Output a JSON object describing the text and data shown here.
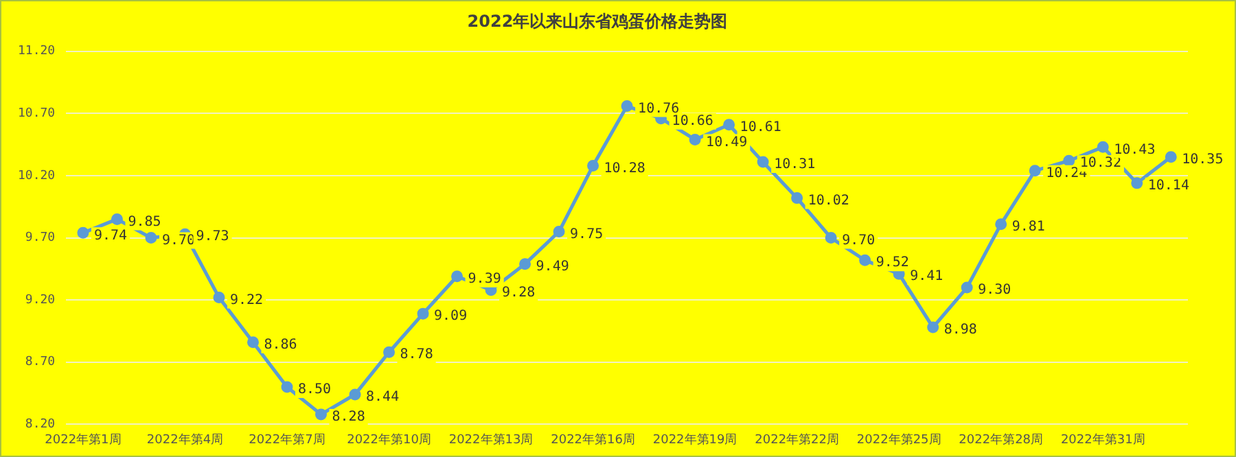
{
  "chart_data": {
    "type": "line",
    "title": "2022年以来山东省鸡蛋价格走势图",
    "categories": [
      "2022年第1周",
      null,
      null,
      "2022年第4周",
      null,
      null,
      "2022年第7周",
      null,
      null,
      "2022年第10周",
      null,
      null,
      "2022年第13周",
      null,
      null,
      "2022年第16周",
      null,
      null,
      "2022年第19周",
      null,
      null,
      "2022年第22周",
      null,
      null,
      "2022年第25周",
      null,
      null,
      "2022年第28周",
      null,
      null,
      "2022年第31周",
      null,
      null
    ],
    "series": [
      {
        "color": "#5b9bd5",
        "values": [
          9.74,
          9.85,
          9.7,
          9.73,
          9.22,
          8.86,
          8.5,
          8.28,
          8.44,
          8.78,
          9.09,
          9.39,
          9.28,
          9.49,
          9.75,
          10.28,
          10.76,
          10.66,
          10.49,
          10.61,
          10.31,
          10.02,
          9.7,
          9.52,
          9.41,
          8.98,
          9.3,
          9.81,
          10.24,
          10.32,
          10.43,
          10.14,
          10.35
        ],
        "value_labels": [
          "9.74",
          "9.85",
          "9.70",
          "9.73",
          "9.22",
          "8.86",
          "8.50",
          "8.28",
          "8.44",
          "8.78",
          "9.09",
          "9.39",
          "9.28",
          "9.49",
          "9.75",
          "10.28",
          "10.76",
          "10.66",
          "10.49",
          "10.61",
          "10.31",
          "10.02",
          "9.70",
          "9.52",
          "9.41",
          "8.98",
          "9.30",
          "9.81",
          "10.24",
          "10.32",
          "10.43",
          "10.14",
          "10.35"
        ]
      }
    ],
    "ylim": [
      8.2,
      11.2
    ],
    "yticks": [
      {
        "value": 8.2,
        "label": "8.20"
      },
      {
        "value": 8.7,
        "label": "8.70"
      },
      {
        "value": 9.2,
        "label": "9.20"
      },
      {
        "value": 9.7,
        "label": "9.70"
      },
      {
        "value": 10.2,
        "label": "10.20"
      },
      {
        "value": 10.7,
        "label": "10.70"
      },
      {
        "value": 11.2,
        "label": "11.20"
      }
    ],
    "grid": "y",
    "legend": false,
    "marker": "circle",
    "line_style": "solid"
  }
}
